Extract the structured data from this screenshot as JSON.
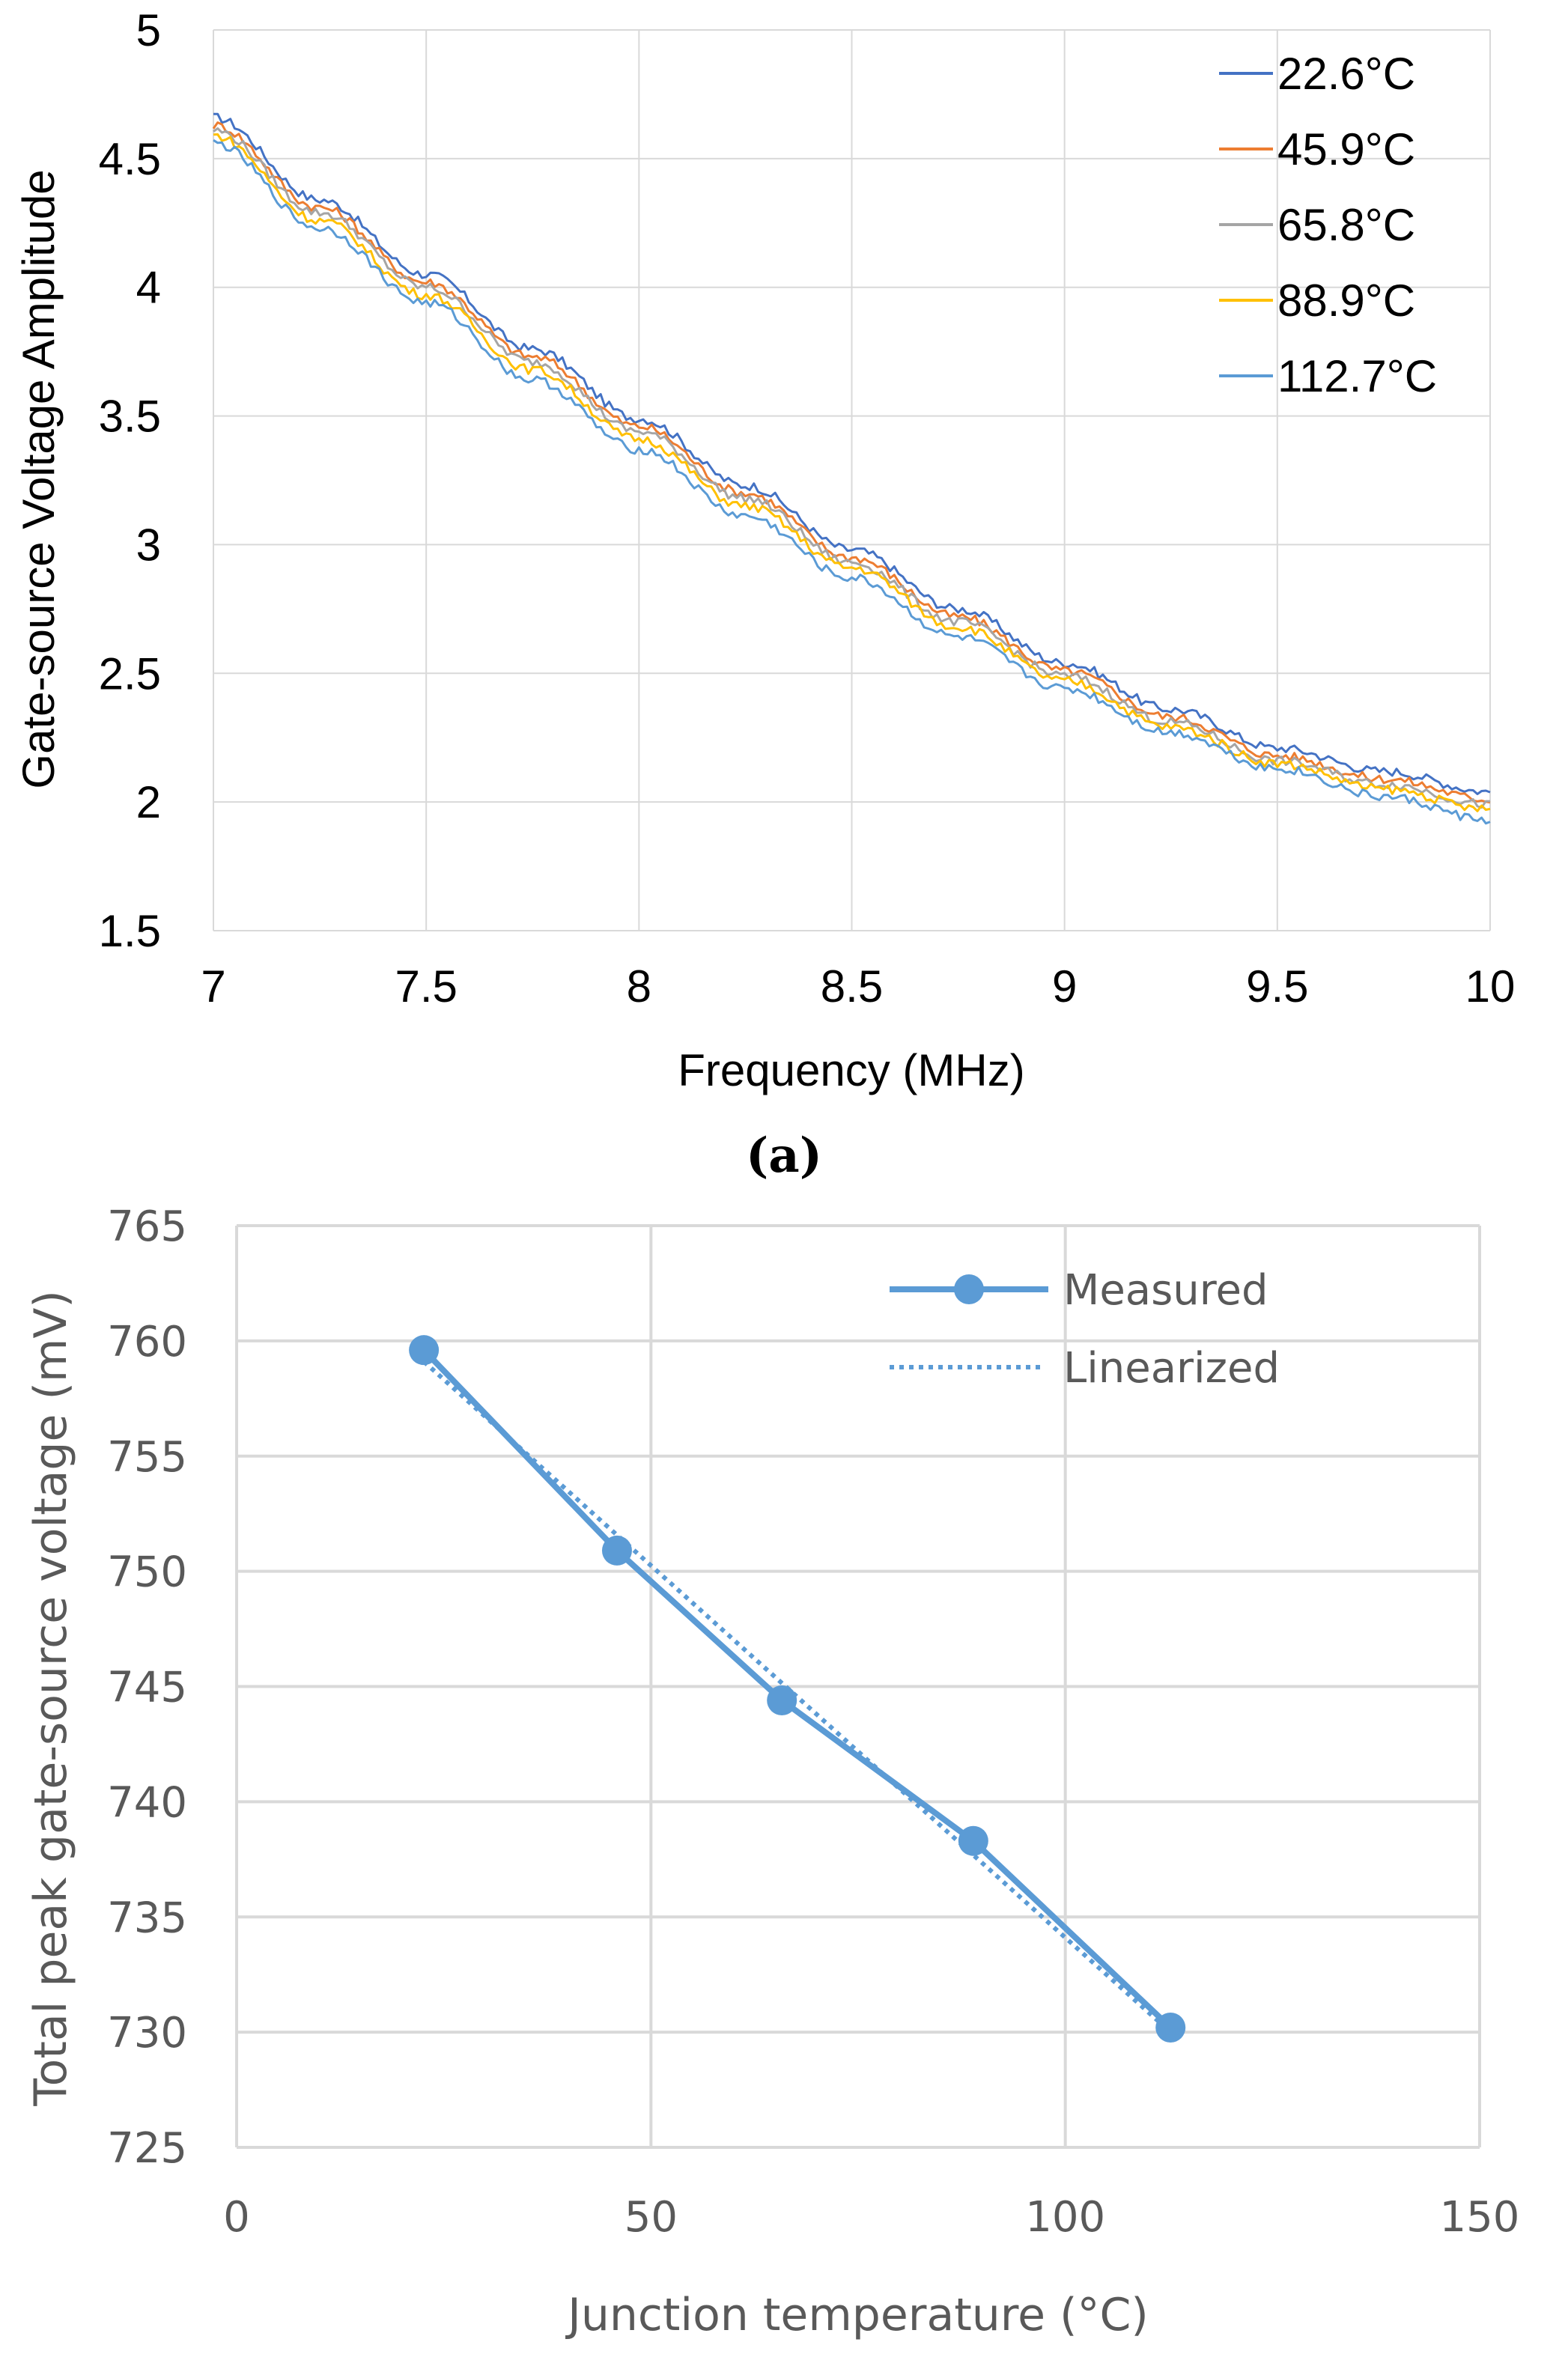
{
  "chart_data": [
    {
      "type": "line",
      "title": "",
      "xlabel": "Frequency (MHz)",
      "ylabel": "Gate-source Voltage Amplitude",
      "xlim": [
        7,
        10
      ],
      "ylim": [
        1.5,
        5
      ],
      "xticks": [
        "7",
        "7.5",
        "8",
        "8.5",
        "9",
        "9.5",
        "10"
      ],
      "yticks": [
        "1.5",
        "2",
        "2.5",
        "3",
        "3.5",
        "4",
        "4.5",
        "5"
      ],
      "grid": true,
      "legend_position": "top-right",
      "x": [
        7.0,
        7.25,
        7.5,
        7.75,
        8.0,
        8.25,
        8.5,
        8.75,
        9.0,
        9.25,
        9.5,
        9.75,
        10.0
      ],
      "series": [
        {
          "name": "22.6°C",
          "color": "#4472C4",
          "values": [
            4.66,
            4.34,
            4.05,
            3.76,
            3.49,
            3.23,
            2.98,
            2.75,
            2.54,
            2.36,
            2.21,
            2.12,
            2.04
          ]
        },
        {
          "name": "45.9°C",
          "color": "#ED7D31",
          "values": [
            4.63,
            4.31,
            4.02,
            3.73,
            3.46,
            3.2,
            2.95,
            2.72,
            2.51,
            2.33,
            2.18,
            2.09,
            2.01
          ]
        },
        {
          "name": "65.8°C",
          "color": "#A5A5A5",
          "values": [
            4.61,
            4.29,
            4.0,
            3.71,
            3.44,
            3.18,
            2.93,
            2.7,
            2.49,
            2.31,
            2.16,
            2.07,
            1.99
          ]
        },
        {
          "name": "88.9°C",
          "color": "#FFC000",
          "values": [
            4.59,
            4.26,
            3.97,
            3.68,
            3.41,
            3.15,
            2.91,
            2.68,
            2.47,
            2.29,
            2.15,
            2.05,
            1.97
          ]
        },
        {
          "name": "112.7°C",
          "color": "#5B9BD5",
          "values": [
            4.56,
            4.23,
            3.94,
            3.64,
            3.37,
            3.11,
            2.87,
            2.64,
            2.44,
            2.27,
            2.13,
            2.02,
            1.93
          ]
        }
      ],
      "caption": "(a)"
    },
    {
      "type": "line",
      "title": "",
      "xlabel": "Junction temperature (°C)",
      "ylabel": "Total peak gate-source voltage (mV)",
      "xlim": [
        0,
        150
      ],
      "ylim": [
        725,
        765
      ],
      "xticks": [
        "0",
        "50",
        "100",
        "150"
      ],
      "yticks": [
        "725",
        "730",
        "735",
        "740",
        "745",
        "750",
        "755",
        "760",
        "765"
      ],
      "grid": true,
      "legend_position": "top-right",
      "color": "#5B9BD5",
      "series": [
        {
          "name": "Measured",
          "style": "solid-with-markers",
          "x": [
            22.6,
            45.9,
            65.8,
            88.9,
            112.7
          ],
          "values": [
            759.6,
            750.9,
            744.4,
            738.3,
            730.2
          ]
        },
        {
          "name": "Linearized",
          "style": "dotted",
          "x": [
            22.6,
            112.7
          ],
          "values": [
            759.1,
            730.0
          ]
        }
      ]
    }
  ]
}
